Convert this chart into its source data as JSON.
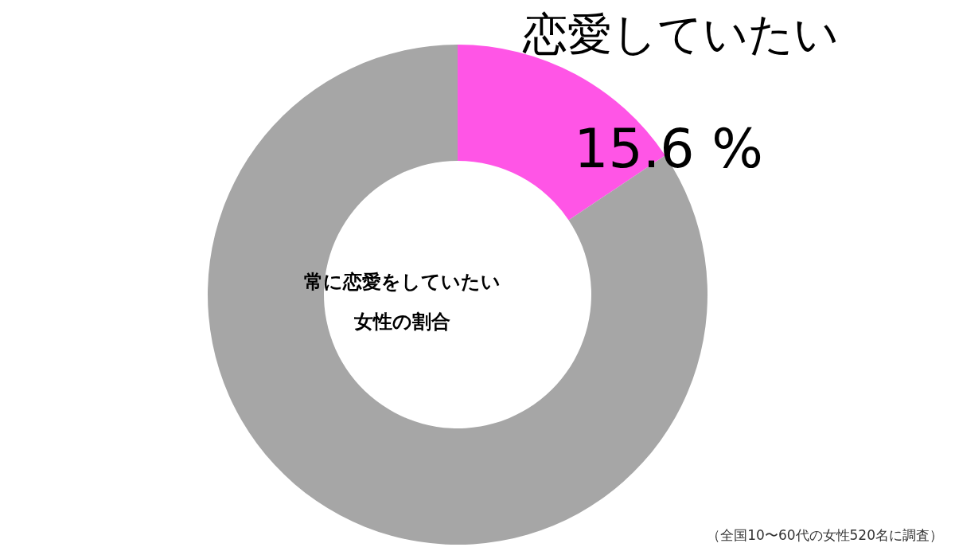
{
  "chart_data": {
    "type": "donut",
    "categories": [
      "恋愛していたい",
      null
    ],
    "values": [
      15.6,
      84.4
    ],
    "colors": [
      "#ff55e6",
      "#a6a6a6"
    ],
    "value_labels": [
      "15.6 %",
      null
    ],
    "annotations": [
      "常に恋愛をしていたい",
      "女性の割合",
      "（全国10〜60代の女性520名に調査）"
    ]
  }
}
